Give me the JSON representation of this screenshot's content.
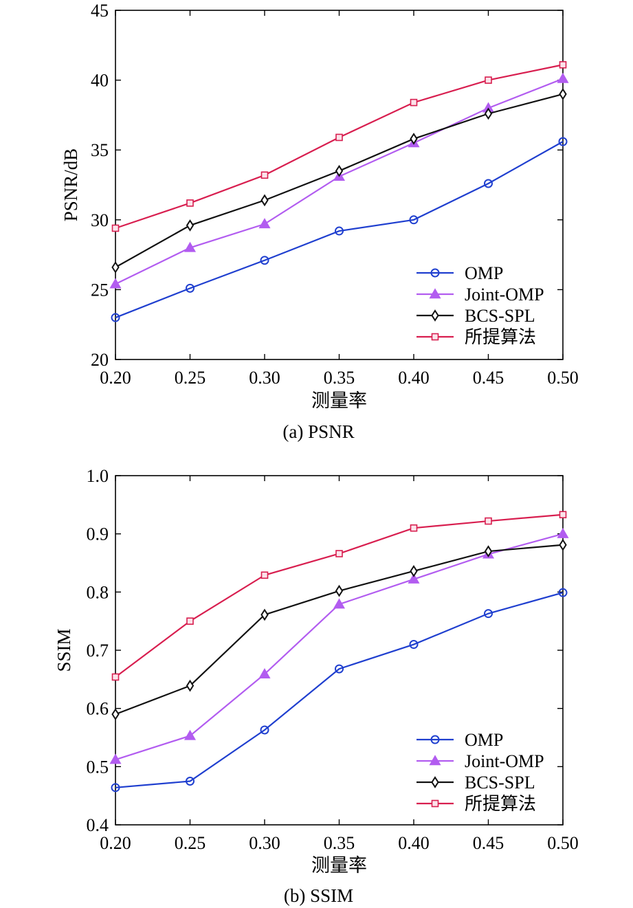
{
  "chart_data": [
    {
      "type": "line",
      "caption": "(a) PSNR",
      "xlabel": "测量率",
      "ylabel": "PSNR/dB",
      "x": [
        0.2,
        0.25,
        0.3,
        0.35,
        0.4,
        0.45,
        0.5
      ],
      "x_ticks": [
        "0.20",
        "0.25",
        "0.30",
        "0.35",
        "0.40",
        "0.45",
        "0.50"
      ],
      "xlim": [
        0.2,
        0.5
      ],
      "ylim": [
        20,
        45
      ],
      "y_ticks": [
        "20",
        "25",
        "30",
        "35",
        "40",
        "45"
      ],
      "y_tick_values": [
        20,
        25,
        30,
        35,
        40,
        45
      ],
      "legend_position": "lower-right",
      "grid": false,
      "series": [
        {
          "name": "OMP",
          "color": "#1f3fcf",
          "marker": "circle",
          "values": [
            23.0,
            25.1,
            27.1,
            29.2,
            30.0,
            32.6,
            35.6
          ]
        },
        {
          "name": "Joint-OMP",
          "color": "#b25cf0",
          "marker": "triangle",
          "values": [
            25.4,
            28.0,
            29.7,
            33.1,
            35.5,
            38.0,
            40.1
          ]
        },
        {
          "name": "BCS-SPL",
          "color": "#111111",
          "marker": "diamond",
          "values": [
            26.6,
            29.6,
            31.4,
            33.5,
            35.8,
            37.6,
            39.0
          ]
        },
        {
          "name": "所提算法",
          "color": "#d81e4f",
          "marker": "square",
          "values": [
            29.4,
            31.2,
            33.2,
            35.9,
            38.4,
            40.0,
            41.1
          ]
        }
      ]
    },
    {
      "type": "line",
      "caption": "(b) SSIM",
      "xlabel": "测量率",
      "ylabel": "SSIM",
      "x": [
        0.2,
        0.25,
        0.3,
        0.35,
        0.4,
        0.45,
        0.5
      ],
      "x_ticks": [
        "0.20",
        "0.25",
        "0.30",
        "0.35",
        "0.40",
        "0.45",
        "0.50"
      ],
      "xlim": [
        0.2,
        0.5
      ],
      "ylim": [
        0.4,
        1.0
      ],
      "y_ticks": [
        "0.4",
        "0.5",
        "0.6",
        "0.7",
        "0.8",
        "0.9",
        "1.0"
      ],
      "y_tick_values": [
        0.4,
        0.5,
        0.6,
        0.7,
        0.8,
        0.9,
        1.0
      ],
      "legend_position": "lower-right",
      "grid": false,
      "series": [
        {
          "name": "OMP",
          "color": "#1f3fcf",
          "marker": "circle",
          "values": [
            0.464,
            0.475,
            0.563,
            0.668,
            0.71,
            0.763,
            0.799
          ]
        },
        {
          "name": "Joint-OMP",
          "color": "#b25cf0",
          "marker": "triangle",
          "values": [
            0.512,
            0.553,
            0.659,
            0.779,
            0.822,
            0.865,
            0.9
          ]
        },
        {
          "name": "BCS-SPL",
          "color": "#111111",
          "marker": "diamond",
          "values": [
            0.59,
            0.639,
            0.761,
            0.802,
            0.836,
            0.87,
            0.881
          ]
        },
        {
          "name": "所提算法",
          "color": "#d81e4f",
          "marker": "square",
          "values": [
            0.654,
            0.75,
            0.829,
            0.866,
            0.91,
            0.922,
            0.933
          ]
        }
      ]
    }
  ]
}
